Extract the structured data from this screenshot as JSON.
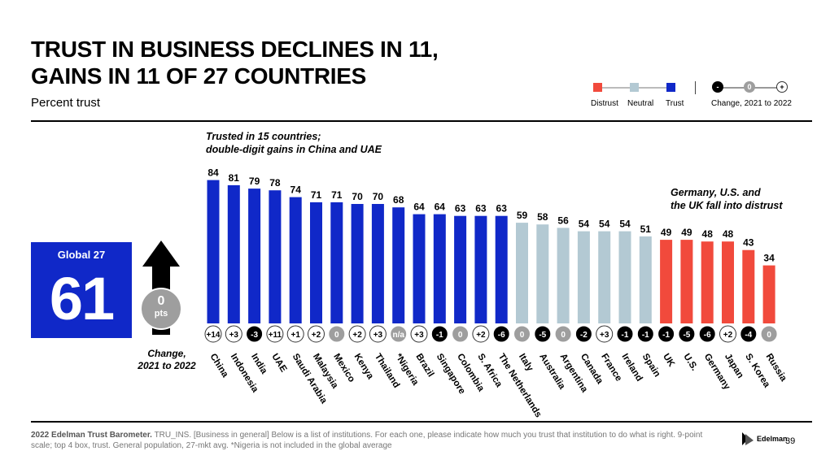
{
  "title_line1": "TRUST IN BUSINESS DECLINES IN 11,",
  "title_line2": "GAINS IN 11 OF 27 COUNTRIES",
  "subtitle": "Percent trust",
  "legend": {
    "distrust": "Distrust",
    "neutral": "Neutral",
    "trust": "Trust",
    "change_label": "Change, 2021 to 2022",
    "minus": "-",
    "zero": "0",
    "plus": "+"
  },
  "colors": {
    "trust": "#1028c8",
    "neutral": "#b3c9d3",
    "distrust": "#f14a3c",
    "decline": "#000000",
    "no_change": "#9e9e9e",
    "gain": "#ffffff"
  },
  "callout_trusted": [
    "Trusted in 15 countries;",
    "double-digit gains in China and UAE"
  ],
  "callout_distrust": [
    "Germany, U.S. and",
    "the UK fall into distrust"
  ],
  "global": {
    "label": "Global 27",
    "value": "61",
    "change_value": "0",
    "change_unit": "pts",
    "change_label_line1": "Change,",
    "change_label_line2": "2021 to 2022"
  },
  "chart_data": {
    "type": "bar",
    "ylim": [
      0,
      100
    ],
    "categories": [
      "China",
      "Indonesia",
      "India",
      "UAE",
      "Saudi Arabia",
      "Malaysia",
      "Mexico",
      "Kenya",
      "Thailand",
      "*Nigeria",
      "Brazil",
      "Singapore",
      "Colombia",
      "S. Africa",
      "The Netherlands",
      "Italy",
      "Australia",
      "Argentina",
      "Canada",
      "France",
      "Ireland",
      "Spain",
      "UK",
      "U.S.",
      "Germany",
      "Japan",
      "S. Korea",
      "Russia"
    ],
    "values": [
      84,
      81,
      79,
      78,
      74,
      71,
      71,
      70,
      70,
      68,
      64,
      64,
      63,
      63,
      63,
      59,
      58,
      56,
      54,
      54,
      54,
      51,
      49,
      49,
      48,
      48,
      43,
      34
    ],
    "trust_level": [
      "trust",
      "trust",
      "trust",
      "trust",
      "trust",
      "trust",
      "trust",
      "trust",
      "trust",
      "trust",
      "trust",
      "trust",
      "trust",
      "trust",
      "trust",
      "neutral",
      "neutral",
      "neutral",
      "neutral",
      "neutral",
      "neutral",
      "neutral",
      "distrust",
      "distrust",
      "distrust",
      "distrust",
      "distrust",
      "distrust"
    ],
    "change": [
      "+14",
      "+3",
      "-3",
      "+11",
      "+1",
      "+2",
      "0",
      "+2",
      "+3",
      "n/a",
      "+3",
      "-1",
      "0",
      "+2",
      "-6",
      "0",
      "-5",
      "0",
      "-2",
      "+3",
      "-1",
      "-1",
      "-1",
      "-5",
      "-6",
      "+2",
      "-4",
      "0"
    ]
  },
  "footer_bold": "2022 Edelman Trust Barometer.",
  "footer_text": " TRU_INS. [Business in general] Below is a list of institutions. For each one, please indicate how much you trust that institution to do what is right. 9-point scale; top 4 box, trust. General population, 27-mkt avg. *Nigeria is not included in the global average",
  "brand": "Edelman",
  "page_number": "39"
}
